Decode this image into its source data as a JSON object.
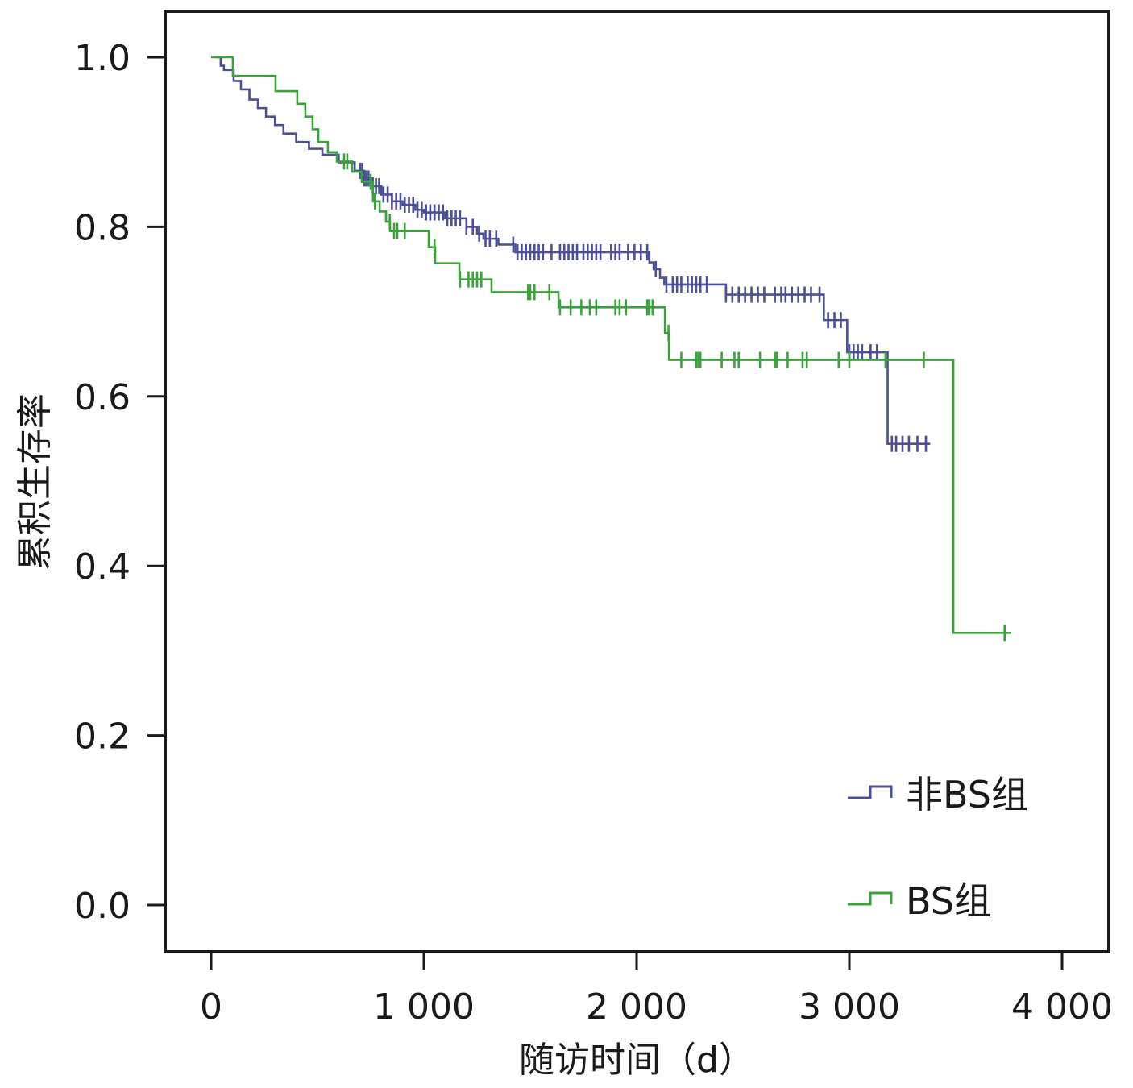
{
  "chart_data": {
    "type": "line",
    "subtype": "kaplan-meier",
    "title": "",
    "xlabel": "随访时间（d）",
    "ylabel": "累积生存率",
    "xlim": [
      -220,
      4220
    ],
    "ylim": [
      -0.055,
      1.055
    ],
    "xticks": [
      0,
      1000,
      2000,
      3000,
      4000
    ],
    "xtick_labels": [
      "0",
      "1 000",
      "2 000",
      "3 000",
      "4 000"
    ],
    "yticks": [
      0.0,
      0.2,
      0.4,
      0.6,
      0.8,
      1.0
    ],
    "ytick_labels": [
      "0.0",
      "0.2",
      "0.4",
      "0.6",
      "0.8",
      "1.0"
    ],
    "grid": false,
    "legend_position": "bottom-right",
    "series": [
      {
        "name": "非BS组",
        "color": "#4b4f94",
        "start": 30,
        "end": 3380,
        "steps": [
          [
            30,
            1.0
          ],
          [
            45,
            0.99
          ],
          [
            60,
            0.985
          ],
          [
            106,
            0.972
          ],
          [
            140,
            0.962
          ],
          [
            180,
            0.95
          ],
          [
            220,
            0.94
          ],
          [
            258,
            0.93
          ],
          [
            300,
            0.92
          ],
          [
            340,
            0.91
          ],
          [
            400,
            0.9
          ],
          [
            460,
            0.892
          ],
          [
            523,
            0.885
          ],
          [
            600,
            0.876
          ],
          [
            675,
            0.866
          ],
          [
            720,
            0.857
          ],
          [
            760,
            0.848
          ],
          [
            800,
            0.838
          ],
          [
            850,
            0.83
          ],
          [
            900,
            0.826
          ],
          [
            960,
            0.82
          ],
          [
            1000,
            0.817
          ],
          [
            1100,
            0.81
          ],
          [
            1200,
            0.8
          ],
          [
            1250,
            0.792
          ],
          [
            1280,
            0.786
          ],
          [
            1350,
            0.779
          ],
          [
            1430,
            0.77
          ],
          [
            2060,
            0.758
          ],
          [
            2080,
            0.75
          ],
          [
            2110,
            0.74
          ],
          [
            2130,
            0.732
          ],
          [
            2420,
            0.72
          ],
          [
            2880,
            0.69
          ],
          [
            2990,
            0.652
          ],
          [
            3180,
            0.544
          ]
        ],
        "censored": [
          700,
          710,
          720,
          730,
          740,
          760,
          775,
          790,
          810,
          830,
          850,
          870,
          890,
          910,
          930,
          950,
          970,
          990,
          1010,
          1030,
          1050,
          1070,
          1090,
          1110,
          1130,
          1150,
          1170,
          1200,
          1230,
          1260,
          1290,
          1310,
          1340,
          1420,
          1440,
          1460,
          1480,
          1500,
          1520,
          1540,
          1560,
          1600,
          1640,
          1660,
          1680,
          1700,
          1720,
          1750,
          1770,
          1790,
          1810,
          1830,
          1880,
          1900,
          1920,
          1960,
          1990,
          2020,
          2050,
          2090,
          2140,
          2170,
          2190,
          2210,
          2240,
          2260,
          2280,
          2300,
          2330,
          2420,
          2450,
          2480,
          2510,
          2540,
          2570,
          2600,
          2650,
          2680,
          2700,
          2730,
          2760,
          2790,
          2820,
          2860,
          2900,
          2930,
          2960,
          3000,
          3020,
          3040,
          3060,
          3100,
          3130,
          3200,
          3220,
          3250,
          3280,
          3320,
          3360
        ]
      },
      {
        "name": "BS组",
        "color": "#3aa23a",
        "start": 0,
        "end": 3760,
        "steps": [
          [
            0,
            1.0
          ],
          [
            102,
            0.978
          ],
          [
            303,
            0.96
          ],
          [
            405,
            0.945
          ],
          [
            443,
            0.93
          ],
          [
            477,
            0.915
          ],
          [
            504,
            0.9
          ],
          [
            549,
            0.888
          ],
          [
            591,
            0.877
          ],
          [
            663,
            0.865
          ],
          [
            708,
            0.853
          ],
          [
            761,
            0.83
          ],
          [
            792,
            0.818
          ],
          [
            822,
            0.806
          ],
          [
            841,
            0.795
          ],
          [
            1023,
            0.776
          ],
          [
            1053,
            0.757
          ],
          [
            1167,
            0.738
          ],
          [
            1318,
            0.723
          ],
          [
            1633,
            0.705
          ],
          [
            2133,
            0.675
          ],
          [
            2152,
            0.643
          ],
          [
            3489,
            0.321
          ]
        ],
        "censored": [
          625,
          640,
          750,
          770,
          840,
          860,
          875,
          910,
          1050,
          1170,
          1210,
          1230,
          1250,
          1270,
          1490,
          1500,
          1520,
          1590,
          1640,
          1690,
          1740,
          1780,
          1810,
          1900,
          1920,
          1950,
          2050,
          2060,
          2075,
          2150,
          2210,
          2280,
          2290,
          2300,
          2400,
          2460,
          2480,
          2580,
          2650,
          2660,
          2710,
          2780,
          2800,
          2950,
          3000,
          3170,
          3350,
          3730
        ]
      }
    ]
  }
}
